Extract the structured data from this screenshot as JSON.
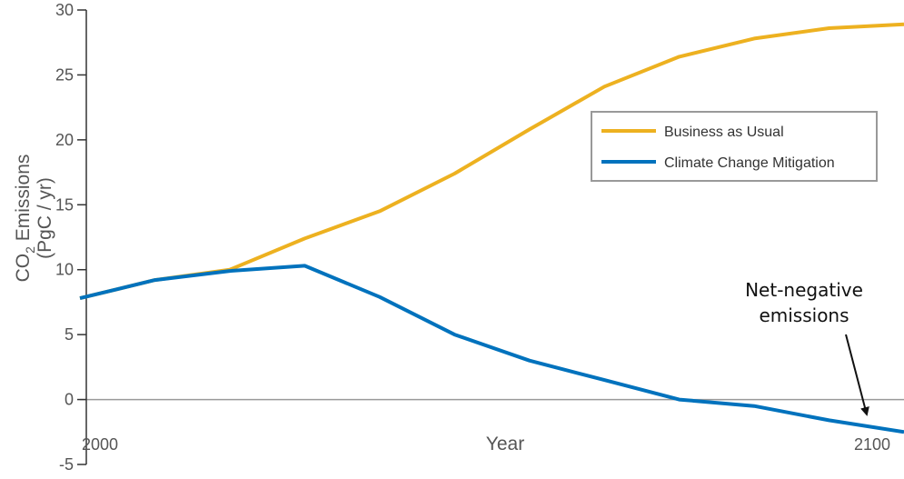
{
  "chart_data": {
    "type": "line",
    "x": [
      1990,
      2000,
      2010,
      2020,
      2030,
      2040,
      2050,
      2060,
      2070,
      2080,
      2090,
      2100
    ],
    "series": [
      {
        "name": "Business as Usual",
        "color": "#EDB120",
        "values": [
          7.8,
          9.2,
          10.0,
          12.4,
          14.5,
          17.4,
          20.8,
          24.1,
          26.4,
          27.8,
          28.6,
          28.9
        ]
      },
      {
        "name": "Climate Change Mitigation",
        "color": "#0072BD",
        "values": [
          7.8,
          9.2,
          9.9,
          10.3,
          7.9,
          5.0,
          3.0,
          1.5,
          0.0,
          -0.5,
          -1.6,
          -2.5
        ]
      }
    ],
    "xlim": [
      1990,
      2100
    ],
    "ylim": [
      -5,
      30
    ],
    "yticks": [
      "-5",
      "0",
      "5",
      "10",
      "15",
      "20",
      "25",
      "30"
    ],
    "xtick_labels": {
      "left": "2000",
      "right": "2100"
    },
    "xlabel": "Year",
    "ylabel_main": "CO",
    "ylabel_sub": "2",
    "ylabel_rest": " Emissions",
    "ylabel_units": "(PgC / yr)",
    "zero_line_color": "#999999",
    "legend": {
      "position": "upper-right",
      "entries": [
        "Business as Usual",
        "Climate Change Mitigation"
      ]
    },
    "annotation": {
      "line1": "Net-negative",
      "line2": "emissions"
    },
    "grid": false
  }
}
